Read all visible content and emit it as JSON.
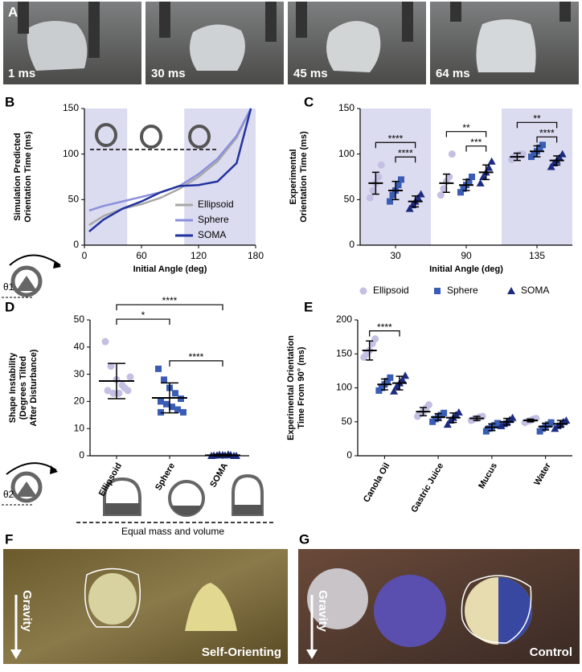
{
  "panel_a": {
    "label": "A",
    "frames": [
      "1 ms",
      "30 ms",
      "45 ms",
      "64 ms"
    ]
  },
  "chart_data": [
    {
      "label": "B",
      "type": "line",
      "ylabel": [
        "Simulation Predicted",
        "Orientation Time (ms)"
      ],
      "xlabel": "Initial Angle (deg)",
      "x": [
        5,
        20,
        40,
        60,
        80,
        100,
        120,
        140,
        160,
        175
      ],
      "xlim": [
        0,
        180
      ],
      "xticks": [
        0,
        60,
        120,
        180
      ],
      "ylim": [
        0,
        150
      ],
      "yticks": [
        0,
        50,
        100,
        150
      ],
      "shaded_ranges": [
        [
          0,
          45
        ],
        [
          105,
          180
        ]
      ],
      "shade_color": "#dcdcf0",
      "legend": "lower right",
      "series": [
        {
          "name": "Ellipsoid",
          "color": "#a8a8a8",
          "values": [
            22,
            32,
            40,
            45,
            52,
            62,
            75,
            92,
            118,
            150
          ]
        },
        {
          "name": "Sphere",
          "color": "#8c90dc",
          "values": [
            38,
            43,
            48,
            53,
            58,
            65,
            78,
            95,
            120,
            150
          ]
        },
        {
          "name": "SOMA",
          "color": "#22339e",
          "values": [
            15,
            28,
            40,
            48,
            58,
            65,
            66,
            70,
            90,
            150
          ]
        }
      ]
    },
    {
      "label": "C",
      "type": "dot",
      "ylabel": [
        "Experimental",
        "Orientation Time (ms)"
      ],
      "xlabel": "Initial Angle (deg)",
      "categories": [
        "30",
        "90",
        "135"
      ],
      "shaded": [
        true,
        false,
        true
      ],
      "shade_color": "#dcdcf0",
      "ylim": [
        0,
        150
      ],
      "yticks": [
        0,
        50,
        100,
        150
      ],
      "legend": "below",
      "series": [
        {
          "name": "Ellipsoid",
          "color": "#c3c0e3",
          "marker": "circle",
          "values": [
            68,
            68,
            97
          ],
          "errors": [
            12,
            10,
            4
          ],
          "points": [
            [
              52,
              60,
              68,
              75,
              88
            ],
            [
              55,
              62,
              70,
              75,
              100
            ],
            [
              94,
              97,
              98,
              100,
              100
            ]
          ]
        },
        {
          "name": "Sphere",
          "color": "#3b5cb4",
          "marker": "square",
          "values": [
            60,
            66,
            103
          ],
          "errors": [
            10,
            6,
            6
          ],
          "points": [
            [
              48,
              55,
              60,
              66,
              72
            ],
            [
              58,
              62,
              66,
              70,
              75
            ],
            [
              97,
              100,
              103,
              107,
              110
            ]
          ]
        },
        {
          "name": "SOMA",
          "color": "#1c2a80",
          "marker": "triangle",
          "values": [
            48,
            80,
            93
          ],
          "errors": [
            6,
            8,
            5
          ],
          "points": [
            [
              40,
              44,
              48,
              52,
              56
            ],
            [
              68,
              75,
              80,
              85,
              92
            ],
            [
              86,
              90,
              93,
              96,
              100
            ]
          ]
        }
      ],
      "comparisons": [
        "****",
        "****",
        "**",
        "***",
        "**",
        "****"
      ]
    },
    {
      "label": "D",
      "type": "dot",
      "ylabel": [
        "Shape Instability",
        "(Degrees Tilted",
        "After Disturbance)"
      ],
      "categories": [
        "Ellipsoid",
        "Sphere",
        "SOMA"
      ],
      "rotated_labels": true,
      "ylim": [
        0,
        50
      ],
      "yticks": [
        0,
        10,
        20,
        30,
        40,
        50
      ],
      "colors": [
        "#c3c0e3",
        "#3b5cb4",
        "#1c2a80"
      ],
      "markers": [
        "circle",
        "square",
        "triangle"
      ],
      "values": [
        27.5,
        21.3,
        0.2
      ],
      "errors": [
        6.5,
        5.5,
        0.3
      ],
      "points": [
        [
          42,
          33,
          28,
          26,
          24,
          24,
          23,
          23,
          25,
          29
        ],
        [
          32,
          28,
          25,
          23,
          21,
          20,
          19,
          18,
          17,
          16,
          16
        ],
        [
          0,
          0.2,
          0.3,
          0.5,
          0,
          0.1,
          0.4,
          0.2,
          0.3,
          0
        ]
      ],
      "comparisons": [
        "*",
        "****",
        "****"
      ],
      "footer": "Equal mass and volume"
    },
    {
      "label": "E",
      "type": "dot",
      "ylabel": [
        "Experimental Orientation",
        "Time From 90° (ms)"
      ],
      "categories": [
        "Canola Oil",
        "Gastric Juice",
        "Mucus",
        "Water"
      ],
      "rotated_labels": true,
      "ylim": [
        0,
        200
      ],
      "yticks": [
        0,
        50,
        100,
        150,
        200
      ],
      "series": [
        {
          "name": "Ellipsoid",
          "color": "#c3c0e3",
          "marker": "circle",
          "values": [
            155,
            65,
            55,
            52
          ],
          "errors": [
            14,
            6,
            3,
            2
          ],
          "points": [
            [
              145,
              150,
              155,
              165,
              172
            ],
            [
              58,
              62,
              65,
              70,
              75
            ],
            [
              52,
              54,
              55,
              57,
              58
            ],
            [
              49,
              51,
              52,
              54,
              55
            ]
          ]
        },
        {
          "name": "Sphere",
          "color": "#3b5cb4",
          "marker": "square",
          "values": [
            105,
            57,
            42,
            43
          ],
          "errors": [
            8,
            5,
            5,
            5
          ],
          "points": [
            [
              96,
              100,
              105,
              110,
              115
            ],
            [
              50,
              54,
              57,
              60,
              63
            ],
            [
              36,
              40,
              42,
              45,
              48
            ],
            [
              36,
              40,
              43,
              46,
              49
            ]
          ]
        },
        {
          "name": "SOMA",
          "color": "#1c2a80",
          "marker": "triangle",
          "values": [
            107,
            56,
            50,
            47
          ],
          "errors": [
            10,
            7,
            5,
            5
          ],
          "points": [
            [
              95,
              102,
              107,
              112,
              118
            ],
            [
              46,
              52,
              56,
              60,
              64
            ],
            [
              44,
              47,
              50,
              53,
              56
            ],
            [
              40,
              44,
              47,
              50,
              52
            ]
          ]
        }
      ],
      "comparisons": [
        "****"
      ]
    }
  ],
  "icons": {
    "theta1": "θ1",
    "theta2": "θ2"
  },
  "panel_f": {
    "label": "F",
    "caption": "Self-Orienting",
    "arrow": "Gravity"
  },
  "panel_g": {
    "label": "G",
    "caption": "Control",
    "arrow": "Gravity"
  }
}
